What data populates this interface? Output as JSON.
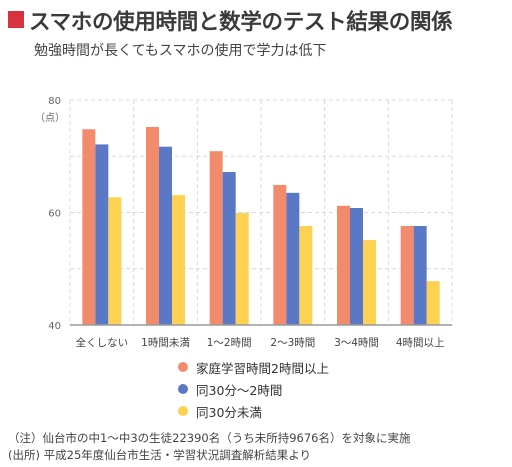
{
  "colors": {
    "accent": "#d5333e"
  },
  "chart_data": {
    "type": "bar",
    "title": "スマホの使用時間と数学のテスト結果の関係",
    "subtitle": "勉強時間が長くてもスマホの使用で学力は低下",
    "categories": [
      "全くしない",
      "1時間未満",
      "1～2時間",
      "2～3時間",
      "3～4時間",
      "4時間以上"
    ],
    "series": [
      {
        "name": "家庭学習時間2時間以上",
        "color": "#f28b6c",
        "values": [
          74.8,
          75.2,
          70.9,
          64.9,
          61.2,
          57.6
        ]
      },
      {
        "name": "同30分～2時間",
        "color": "#5b78c7",
        "values": [
          72.1,
          71.7,
          67.2,
          63.5,
          60.8,
          57.6
        ]
      },
      {
        "name": "同30分未満",
        "color": "#fdd152",
        "values": [
          62.7,
          63.1,
          59.9,
          57.6,
          55.1,
          47.8
        ]
      }
    ],
    "ylabel": "（点）",
    "ylim": [
      40,
      80
    ],
    "yticks": [
      40,
      60,
      80
    ],
    "grid": true,
    "grid_step": 10,
    "legend": "bottom"
  },
  "notes": [
    "（注）仙台市の中1～中3の生徒22390名（うち未所持9676名）を対象に実施",
    "(出所) 平成25年度仙台市生活・学習状況調査解析結果より"
  ]
}
